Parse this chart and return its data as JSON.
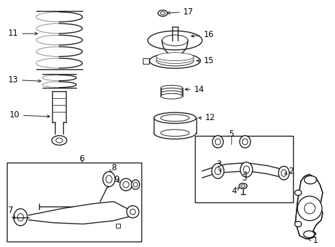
{
  "bg_color": "#ffffff",
  "line_color": "#1a1a1a",
  "label_color": "#000000",
  "border_color": "#222222",
  "fs": 8.5,
  "lw": 1.0
}
